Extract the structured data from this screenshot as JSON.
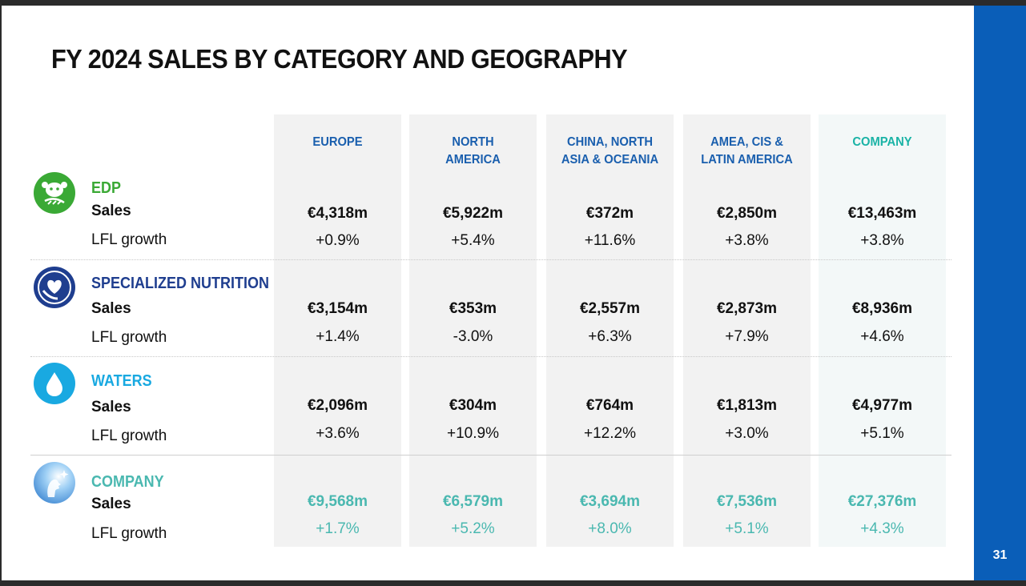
{
  "title": "FY 2024 SALES BY CATEGORY AND GEOGRAPHY",
  "page_number": "31",
  "columns": [
    "EUROPE",
    "NORTH\nAMERICA",
    "CHINA, NORTH\nASIA & OCEANIA",
    "AMEA, CIS &\nLATIN AMERICA",
    "COMPANY"
  ],
  "labels": {
    "sales": "Sales",
    "lfl": "LFL growth"
  },
  "colors": {
    "edp": "#3aa935",
    "specialized": "#1f3e8f",
    "waters": "#19a9e1",
    "company": "#4ab8b0",
    "header": "#1a5fae",
    "sidebar": "#0a5eb8"
  },
  "rows": [
    {
      "name": "EDP",
      "icon": "cow-icon",
      "sales": [
        "€4,318m",
        "€5,922m",
        "€372m",
        "€2,850m",
        "€13,463m"
      ],
      "lfl": [
        "+0.9%",
        "+5.4%",
        "+11.6%",
        "+3.8%",
        "+3.8%"
      ]
    },
    {
      "name": "SPECIALIZED NUTRITION",
      "icon": "heart-hand-icon",
      "sales": [
        "€3,154m",
        "€353m",
        "€2,557m",
        "€2,873m",
        "€8,936m"
      ],
      "lfl": [
        "+1.4%",
        "-3.0%",
        "+6.3%",
        "+7.9%",
        "+4.6%"
      ]
    },
    {
      "name": "WATERS",
      "icon": "water-drop-icon",
      "sales": [
        "€2,096m",
        "€304m",
        "€764m",
        "€1,813m",
        "€4,977m"
      ],
      "lfl": [
        "+3.6%",
        "+10.9%",
        "+12.2%",
        "+3.0%",
        "+5.1%"
      ]
    },
    {
      "name": "COMPANY",
      "icon": "company-logo-icon",
      "sales": [
        "€9,568m",
        "€6,579m",
        "€3,694m",
        "€7,536m",
        "€27,376m"
      ],
      "lfl": [
        "+1.7%",
        "+5.2%",
        "+8.0%",
        "+5.1%",
        "+4.3%"
      ]
    }
  ]
}
